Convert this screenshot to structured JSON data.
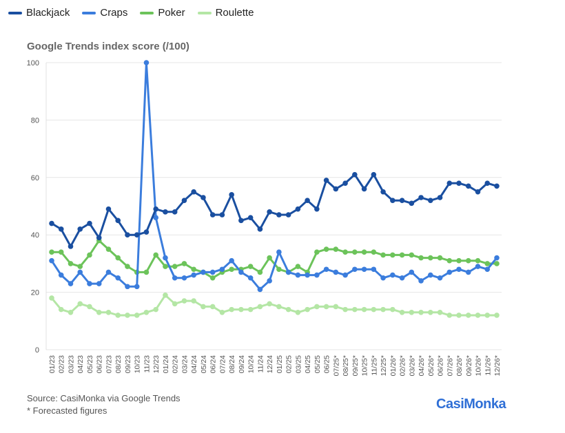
{
  "chart_data": {
    "type": "line",
    "title": "Google Trends index score (/100)",
    "xlabel": "",
    "ylabel": "",
    "ylim": [
      0,
      100
    ],
    "yticks": [
      0,
      20,
      40,
      60,
      80,
      100
    ],
    "grid": true,
    "legend_position": "top-left",
    "x": [
      "01/23",
      "02/23",
      "03/23",
      "04/23",
      "05/23",
      "06/23",
      "07/23",
      "08/23",
      "09/23",
      "10/23",
      "11/23",
      "12/23",
      "01/24",
      "02/24",
      "03/24",
      "04/24",
      "05/24",
      "06/24",
      "07/24",
      "08/24",
      "09/24",
      "10/24",
      "11/24",
      "12/24",
      "01/25",
      "02/25",
      "03/25",
      "04/25",
      "05/25",
      "06/25",
      "07/25*",
      "08/25*",
      "09/25*",
      "10/25*",
      "11/25*",
      "12/25*",
      "01/26*",
      "02/26*",
      "03/26*",
      "04/26*",
      "05/26*",
      "06/26*",
      "07/26*",
      "08/26*",
      "09/26*",
      "10/26*",
      "11/26*",
      "12/26*"
    ],
    "series": [
      {
        "name": "Blackjack",
        "color": "#1a4fa0",
        "values": [
          44,
          42,
          36,
          42,
          44,
          39,
          49,
          45,
          40,
          40,
          41,
          49,
          48,
          48,
          52,
          55,
          53,
          47,
          47,
          54,
          45,
          46,
          42,
          48,
          47,
          47,
          49,
          52,
          49,
          59,
          56,
          58,
          61,
          56,
          61,
          55,
          52,
          52,
          51,
          53,
          52,
          53,
          58,
          58,
          57,
          55,
          58,
          57
        ]
      },
      {
        "name": "Craps",
        "color": "#3b7ddd",
        "values": [
          31,
          26,
          23,
          27,
          23,
          23,
          27,
          25,
          22,
          22,
          100,
          46,
          32,
          25,
          25,
          26,
          27,
          27,
          28,
          31,
          27,
          25,
          21,
          24,
          34,
          27,
          26,
          26,
          26,
          28,
          27,
          26,
          28,
          28,
          28,
          25,
          26,
          25,
          27,
          24,
          26,
          25,
          27,
          28,
          27,
          29,
          28,
          32
        ]
      },
      {
        "name": "Poker",
        "color": "#6cc35a",
        "values": [
          34,
          34,
          30,
          29,
          33,
          38,
          35,
          32,
          29,
          27,
          27,
          33,
          29,
          29,
          30,
          28,
          27,
          25,
          27,
          28,
          28,
          29,
          27,
          32,
          28,
          27,
          29,
          27,
          34,
          35,
          35,
          34,
          34,
          34,
          34,
          33,
          33,
          33,
          33,
          32,
          32,
          32,
          31,
          31,
          31,
          31,
          30,
          30
        ]
      },
      {
        "name": "Roulette",
        "color": "#b4e6a5",
        "values": [
          18,
          14,
          13,
          16,
          15,
          13,
          13,
          12,
          12,
          12,
          13,
          14,
          19,
          16,
          17,
          17,
          15,
          15,
          13,
          14,
          14,
          14,
          15,
          16,
          15,
          14,
          13,
          14,
          15,
          15,
          15,
          14,
          14,
          14,
          14,
          14,
          14,
          13,
          13,
          13,
          13,
          13,
          12,
          12,
          12,
          12,
          12,
          12
        ]
      }
    ]
  },
  "footer": {
    "source": "Source: CasiMonka via Google Trends",
    "note": "* Forecasted figures"
  },
  "logo": {
    "text": "CasiMonka"
  }
}
